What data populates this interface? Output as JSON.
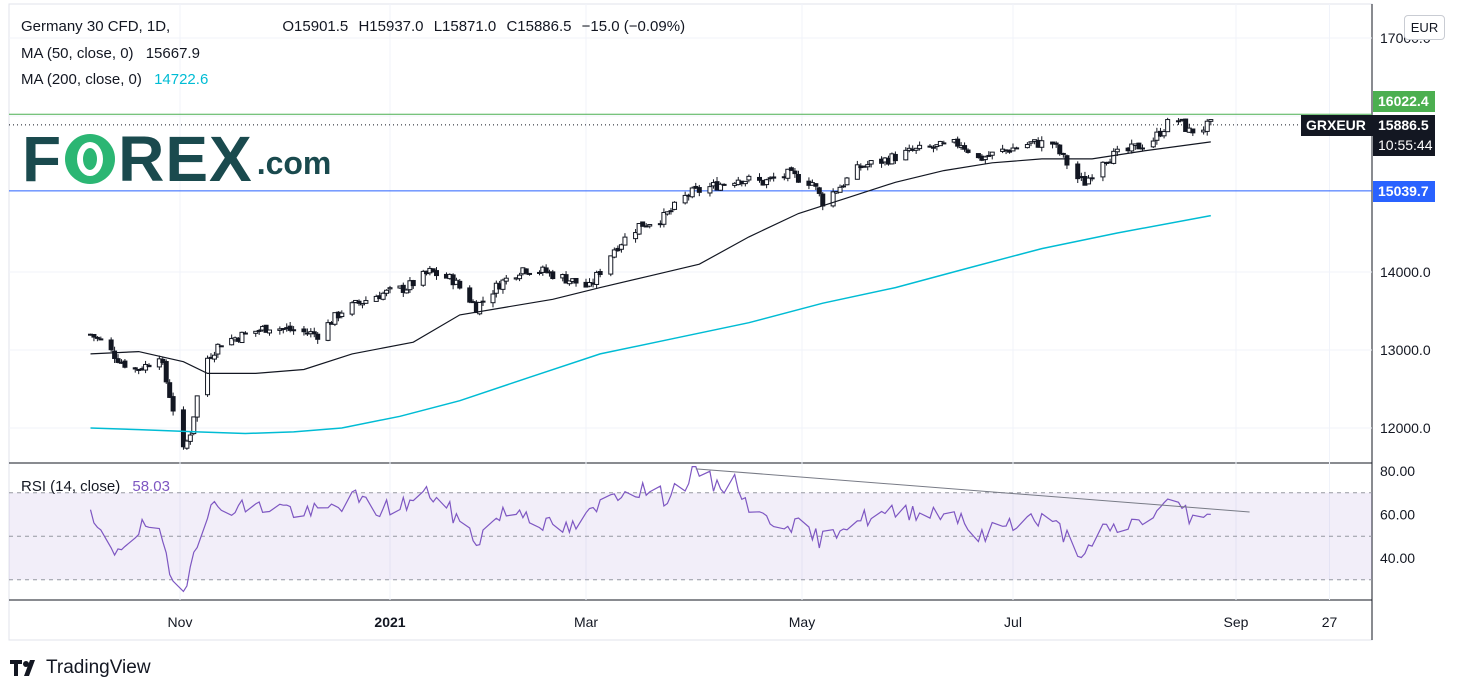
{
  "symbol": {
    "title": "Germany 30 CFD, 1D,",
    "ohlc": [
      "O15901.5",
      "H15937.0",
      "L15871.0",
      "C15886.5",
      "−15.0 (−0.09%)"
    ]
  },
  "indicators": {
    "ma50": {
      "label": "MA (50, close, 0)",
      "value": "15667.9",
      "color": "#131722"
    },
    "ma200": {
      "label": "MA (200, close, 0)",
      "value": "14722.6",
      "color": "#00bcd4"
    },
    "rsi": {
      "label": "RSI (14, close)",
      "value": "58.03",
      "color": "#7e57c2"
    }
  },
  "currency_badge": "EUR",
  "price_tags": {
    "resistance": {
      "value": "16022.4",
      "color": "#4caf50"
    },
    "symbol_tag": "GRXEUR",
    "last_price": "15886.5",
    "countdown": "10:55:44",
    "support": {
      "value": "15039.7",
      "color": "#2962ff"
    }
  },
  "branding": {
    "logo_letters": "F",
    "logo_rest": "REX",
    "logo_suffix": ".com",
    "platform": "TradingView"
  },
  "chart_data": {
    "type": "candlestick",
    "title": "Germany 30 CFD, 1D",
    "price_axis": {
      "ticks": [
        "17000.0",
        "14000.0",
        "13000.0",
        "12000.0"
      ],
      "ylim": [
        11600,
        17500
      ]
    },
    "rsi_axis": {
      "ticks": [
        "80.00",
        "60.00",
        "40.00"
      ],
      "ylim": [
        23,
        84
      ],
      "bands": [
        70,
        50,
        30
      ]
    },
    "time_axis": {
      "ticks": [
        "Nov",
        "2021",
        "Mar",
        "May",
        "Jul",
        "Sep",
        "27"
      ]
    },
    "horizontal_levels": [
      {
        "value": 16022.4,
        "color": "#4caf50"
      },
      {
        "value": 15039.7,
        "color": "#2962ff"
      },
      {
        "value": 15886.5,
        "color": "#131722",
        "style": "dotted"
      }
    ],
    "price_path": [
      [
        "2020-10-06",
        13200
      ],
      [
        "2020-10-09",
        13120
      ],
      [
        "2020-10-12",
        12980
      ],
      [
        "2020-10-15",
        12850
      ],
      [
        "2020-10-19",
        12750
      ],
      [
        "2020-10-22",
        12800
      ],
      [
        "2020-10-26",
        12950
      ],
      [
        "2020-10-28",
        12600
      ],
      [
        "2020-10-30",
        12250
      ],
      [
        "2020-11-02",
        11700
      ],
      [
        "2020-11-04",
        11950
      ],
      [
        "2020-11-06",
        12400
      ],
      [
        "2020-11-09",
        12900
      ],
      [
        "2020-11-13",
        13100
      ],
      [
        "2020-11-20",
        13200
      ],
      [
        "2020-11-27",
        13300
      ],
      [
        "2020-12-04",
        13250
      ],
      [
        "2020-12-11",
        13200
      ],
      [
        "2020-12-18",
        13500
      ],
      [
        "2020-12-28",
        13700
      ],
      [
        "2021-01-06",
        13800
      ],
      [
        "2021-01-13",
        14000
      ],
      [
        "2021-01-20",
        13900
      ],
      [
        "2021-01-27",
        13550
      ],
      [
        "2021-02-03",
        13850
      ],
      [
        "2021-02-10",
        14050
      ],
      [
        "2021-02-17",
        14000
      ],
      [
        "2021-02-24",
        13900
      ],
      [
        "2021-03-02",
        13800
      ],
      [
        "2021-03-09",
        14300
      ],
      [
        "2021-03-16",
        14600
      ],
      [
        "2021-03-23",
        14700
      ],
      [
        "2021-03-30",
        15000
      ],
      [
        "2021-04-06",
        15100
      ],
      [
        "2021-04-13",
        15200
      ],
      [
        "2021-04-20",
        15150
      ],
      [
        "2021-04-27",
        15250
      ],
      [
        "2021-05-04",
        15150
      ],
      [
        "2021-05-07",
        14900
      ],
      [
        "2021-05-12",
        15100
      ],
      [
        "2021-05-18",
        15350
      ],
      [
        "2021-05-26",
        15450
      ],
      [
        "2021-06-02",
        15550
      ],
      [
        "2021-06-09",
        15600
      ],
      [
        "2021-06-16",
        15650
      ],
      [
        "2021-06-21",
        15450
      ],
      [
        "2021-06-28",
        15550
      ],
      [
        "2021-07-06",
        15650
      ],
      [
        "2021-07-12",
        15650
      ],
      [
        "2021-07-19",
        15200
      ],
      [
        "2021-07-21",
        15150
      ],
      [
        "2021-07-26",
        15450
      ],
      [
        "2021-08-02",
        15550
      ],
      [
        "2021-08-09",
        15700
      ],
      [
        "2021-08-13",
        15900
      ],
      [
        "2021-08-16",
        15950
      ],
      [
        "2021-08-19",
        15800
      ],
      [
        "2021-08-23",
        15850
      ],
      [
        "2021-08-25",
        15887
      ]
    ],
    "ma50_path": [
      [
        "2020-10-06",
        12950
      ],
      [
        "2020-10-20",
        12980
      ],
      [
        "2020-11-02",
        12850
      ],
      [
        "2020-11-09",
        12700
      ],
      [
        "2020-11-23",
        12700
      ],
      [
        "2020-12-07",
        12750
      ],
      [
        "2020-12-21",
        12950
      ],
      [
        "2021-01-08",
        13100
      ],
      [
        "2021-01-22",
        13450
      ],
      [
        "2021-02-05",
        13550
      ],
      [
        "2021-02-19",
        13650
      ],
      [
        "2021-03-05",
        13800
      ],
      [
        "2021-03-19",
        13950
      ],
      [
        "2021-04-02",
        14100
      ],
      [
        "2021-04-16",
        14450
      ],
      [
        "2021-04-30",
        14750
      ],
      [
        "2021-05-14",
        14950
      ],
      [
        "2021-05-28",
        15150
      ],
      [
        "2021-06-11",
        15300
      ],
      [
        "2021-06-25",
        15400
      ],
      [
        "2021-07-09",
        15450
      ],
      [
        "2021-07-23",
        15450
      ],
      [
        "2021-08-06",
        15550
      ],
      [
        "2021-08-25",
        15668
      ]
    ],
    "ma200_path": [
      [
        "2020-10-06",
        12000
      ],
      [
        "2020-10-20",
        11980
      ],
      [
        "2020-11-06",
        11950
      ],
      [
        "2020-11-20",
        11930
      ],
      [
        "2020-12-04",
        11950
      ],
      [
        "2020-12-18",
        12000
      ],
      [
        "2021-01-04",
        12150
      ],
      [
        "2021-01-22",
        12350
      ],
      [
        "2021-02-12",
        12650
      ],
      [
        "2021-03-05",
        12950
      ],
      [
        "2021-03-26",
        13150
      ],
      [
        "2021-04-16",
        13350
      ],
      [
        "2021-05-07",
        13600
      ],
      [
        "2021-05-28",
        13800
      ],
      [
        "2021-06-18",
        14050
      ],
      [
        "2021-07-09",
        14300
      ],
      [
        "2021-07-30",
        14500
      ],
      [
        "2021-08-25",
        14723
      ]
    ],
    "rsi_path": [
      [
        "2020-10-06",
        58
      ],
      [
        "2020-10-12",
        42
      ],
      [
        "2020-10-19",
        52
      ],
      [
        "2020-10-23",
        55
      ],
      [
        "2020-10-26",
        50
      ],
      [
        "2020-10-28",
        38
      ],
      [
        "2020-10-30",
        28
      ],
      [
        "2020-11-02",
        25
      ],
      [
        "2020-11-05",
        45
      ],
      [
        "2020-11-09",
        62
      ],
      [
        "2020-11-16",
        64
      ],
      [
        "2020-11-23",
        63
      ],
      [
        "2020-11-30",
        64
      ],
      [
        "2020-12-07",
        60
      ],
      [
        "2020-12-14",
        62
      ],
      [
        "2020-12-21",
        68
      ],
      [
        "2020-12-28",
        62
      ],
      [
        "2021-01-06",
        65
      ],
      [
        "2021-01-13",
        70
      ],
      [
        "2021-01-20",
        60
      ],
      [
        "2021-01-27",
        48
      ],
      [
        "2021-02-03",
        60
      ],
      [
        "2021-02-10",
        62
      ],
      [
        "2021-02-17",
        55
      ],
      [
        "2021-02-24",
        53
      ],
      [
        "2021-03-01",
        58
      ],
      [
        "2021-03-09",
        70
      ],
      [
        "2021-03-16",
        72
      ],
      [
        "2021-03-23",
        68
      ],
      [
        "2021-03-30",
        76
      ],
      [
        "2021-04-01",
        81
      ],
      [
        "2021-04-06",
        74
      ],
      [
        "2021-04-13",
        74
      ],
      [
        "2021-04-16",
        64
      ],
      [
        "2021-04-20",
        58
      ],
      [
        "2021-04-27",
        57
      ],
      [
        "2021-05-04",
        50
      ],
      [
        "2021-05-07",
        48
      ],
      [
        "2021-05-12",
        55
      ],
      [
        "2021-05-18",
        58
      ],
      [
        "2021-05-26",
        60
      ],
      [
        "2021-06-02",
        62
      ],
      [
        "2021-06-09",
        61
      ],
      [
        "2021-06-16",
        60
      ],
      [
        "2021-06-21",
        48
      ],
      [
        "2021-06-28",
        56
      ],
      [
        "2021-07-06",
        58
      ],
      [
        "2021-07-12",
        56
      ],
      [
        "2021-07-19",
        45
      ],
      [
        "2021-07-21",
        40
      ],
      [
        "2021-07-26",
        52
      ],
      [
        "2021-08-02",
        55
      ],
      [
        "2021-08-09",
        60
      ],
      [
        "2021-08-13",
        64
      ],
      [
        "2021-08-16",
        66
      ],
      [
        "2021-08-19",
        60
      ],
      [
        "2021-08-23",
        57
      ],
      [
        "2021-08-25",
        58
      ]
    ],
    "rsi_trendline": [
      [
        "2021-04-01",
        81
      ],
      [
        "2021-09-02",
        63
      ]
    ]
  }
}
